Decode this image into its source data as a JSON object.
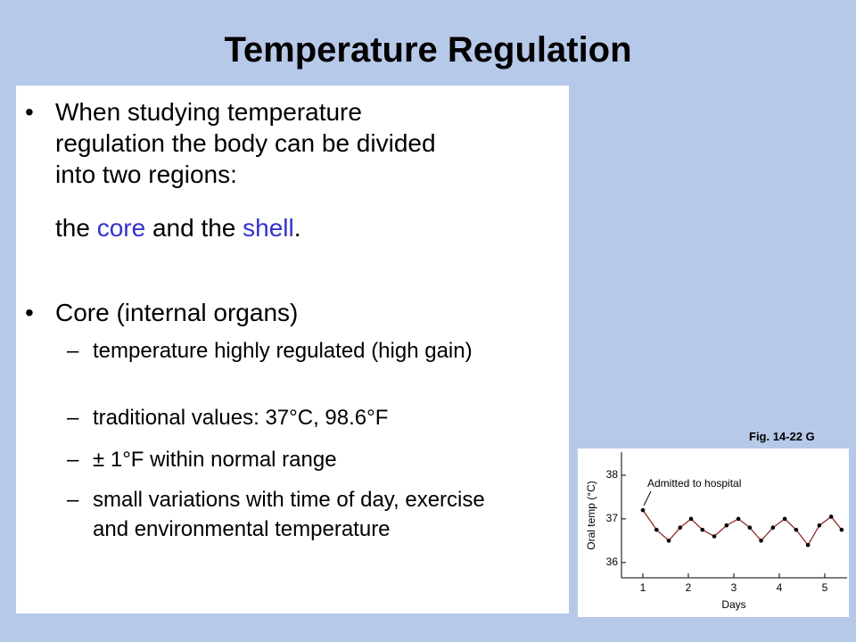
{
  "title": "Temperature Regulation",
  "bullets": [
    {
      "text": "When studying temperature regulation the body can be divided into two regions:",
      "continuation": [
        "the ",
        "core",
        " and the ",
        "shell",
        "."
      ]
    },
    {
      "text": "Core (internal organs)",
      "sub_bullets": [
        "temperature highly regulated (high gain)",
        "traditional values: 37°C, 98.6°F",
        "± 1°F within normal range",
        "small variations with time of day, exercise and environmental temperature"
      ]
    }
  ],
  "figure_label": "Fig. 14-22 G",
  "chart_data": {
    "type": "line",
    "xlabel": "Days",
    "ylabel": "Oral temp (°C)",
    "annotation": "Admitted to hospital",
    "x": [
      1.0,
      1.3,
      1.57,
      1.82,
      2.06,
      2.31,
      2.57,
      2.84,
      3.1,
      3.35,
      3.6,
      3.86,
      4.12,
      4.37,
      4.63,
      4.88,
      5.14,
      5.37
    ],
    "values": [
      37.2,
      36.75,
      36.5,
      36.8,
      37.0,
      36.75,
      36.6,
      36.85,
      37.0,
      36.8,
      36.5,
      36.8,
      37.0,
      36.75,
      36.4,
      36.85,
      37.05,
      36.75
    ],
    "color": "#8b1a1a",
    "xlim": [
      0.53,
      5.49
    ],
    "xticks": [
      1,
      2,
      3,
      4,
      5
    ],
    "ylim": [
      35.65,
      38.53
    ],
    "yticks": [
      36,
      37,
      38
    ]
  }
}
